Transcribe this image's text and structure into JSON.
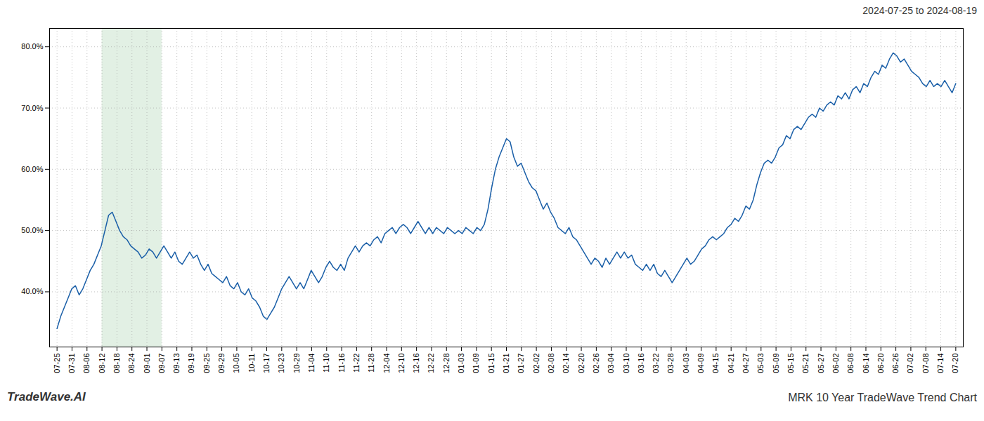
{
  "chart_data": {
    "type": "line",
    "title": "2024-07-25 to 2024-08-19",
    "annotations": [
      "TradeWave.AI",
      "MRK 10 Year TradeWave Trend Chart"
    ],
    "color": "#1a5fa8",
    "grid": true,
    "shaded_region": {
      "x": [
        3,
        7
      ],
      "color": "#d6ead8"
    },
    "xlim": [
      -0.5,
      60.5
    ],
    "xticks": [
      {
        "value": 0,
        "label": "07-25"
      },
      {
        "value": 1,
        "label": "07-31"
      },
      {
        "value": 2,
        "label": "08-06"
      },
      {
        "value": 3,
        "label": "08-12"
      },
      {
        "value": 4,
        "label": "08-18"
      },
      {
        "value": 5,
        "label": "08-24"
      },
      {
        "value": 6,
        "label": "09-01"
      },
      {
        "value": 7,
        "label": "09-07"
      },
      {
        "value": 8,
        "label": "09-13"
      },
      {
        "value": 9,
        "label": "09-19"
      },
      {
        "value": 10,
        "label": "09-25"
      },
      {
        "value": 11,
        "label": "09-29"
      },
      {
        "value": 12,
        "label": "10-05"
      },
      {
        "value": 13,
        "label": "10-11"
      },
      {
        "value": 14,
        "label": "10-17"
      },
      {
        "value": 15,
        "label": "10-23"
      },
      {
        "value": 16,
        "label": "10-29"
      },
      {
        "value": 17,
        "label": "11-04"
      },
      {
        "value": 18,
        "label": "11-10"
      },
      {
        "value": 19,
        "label": "11-16"
      },
      {
        "value": 20,
        "label": "11-22"
      },
      {
        "value": 21,
        "label": "11-28"
      },
      {
        "value": 22,
        "label": "12-04"
      },
      {
        "value": 23,
        "label": "12-10"
      },
      {
        "value": 24,
        "label": "12-16"
      },
      {
        "value": 25,
        "label": "12-22"
      },
      {
        "value": 26,
        "label": "12-28"
      },
      {
        "value": 27,
        "label": "01-03"
      },
      {
        "value": 28,
        "label": "01-09"
      },
      {
        "value": 29,
        "label": "01-15"
      },
      {
        "value": 30,
        "label": "01-21"
      },
      {
        "value": 31,
        "label": "01-27"
      },
      {
        "value": 32,
        "label": "02-02"
      },
      {
        "value": 33,
        "label": "02-08"
      },
      {
        "value": 34,
        "label": "02-14"
      },
      {
        "value": 35,
        "label": "02-20"
      },
      {
        "value": 36,
        "label": "02-26"
      },
      {
        "value": 37,
        "label": "03-04"
      },
      {
        "value": 38,
        "label": "03-10"
      },
      {
        "value": 39,
        "label": "03-16"
      },
      {
        "value": 40,
        "label": "03-22"
      },
      {
        "value": 41,
        "label": "03-28"
      },
      {
        "value": 42,
        "label": "04-03"
      },
      {
        "value": 43,
        "label": "04-09"
      },
      {
        "value": 44,
        "label": "04-15"
      },
      {
        "value": 45,
        "label": "04-21"
      },
      {
        "value": 46,
        "label": "04-27"
      },
      {
        "value": 47,
        "label": "05-03"
      },
      {
        "value": 48,
        "label": "05-09"
      },
      {
        "value": 49,
        "label": "05-15"
      },
      {
        "value": 50,
        "label": "05-21"
      },
      {
        "value": 51,
        "label": "05-27"
      },
      {
        "value": 52,
        "label": "06-02"
      },
      {
        "value": 53,
        "label": "06-08"
      },
      {
        "value": 54,
        "label": "06-14"
      },
      {
        "value": 55,
        "label": "06-20"
      },
      {
        "value": 56,
        "label": "06-26"
      },
      {
        "value": 57,
        "label": "07-02"
      },
      {
        "value": 58,
        "label": "07-08"
      },
      {
        "value": 59,
        "label": "07-14"
      },
      {
        "value": 60,
        "label": "07-20"
      }
    ],
    "ylim": [
      31.0,
      83.0
    ],
    "yticks": [
      {
        "value": 40.0,
        "label": "40.0%"
      },
      {
        "value": 50.0,
        "label": "50.0%"
      },
      {
        "value": 60.0,
        "label": "60.0%"
      },
      {
        "value": 70.0,
        "label": "70.0%"
      },
      {
        "value": 80.0,
        "label": "80.0%"
      }
    ],
    "x": [
      0,
      0.2459,
      0.4918,
      0.7377,
      0.9836,
      1.2295,
      1.4754,
      1.7213,
      1.9672,
      2.2131,
      2.459,
      2.7049,
      2.9508,
      3.1967,
      3.4426,
      3.6885,
      3.9344,
      4.1803,
      4.4262,
      4.6721,
      4.918,
      5.1639,
      5.4098,
      5.6557,
      5.9016,
      6.1475,
      6.3934,
      6.6393,
      6.8852,
      7.1311,
      7.377,
      7.623,
      7.8689,
      8.1148,
      8.3607,
      8.6066,
      8.8525,
      9.0984,
      9.3443,
      9.5902,
      9.8361,
      10.082,
      10.3279,
      10.5738,
      10.8197,
      11.0656,
      11.3115,
      11.5574,
      11.8033,
      12.0492,
      12.2951,
      12.541,
      12.7869,
      13.0328,
      13.2787,
      13.5246,
      13.7705,
      14.0164,
      14.2623,
      14.5082,
      14.7541,
      15,
      15.2459,
      15.4918,
      15.7377,
      15.9836,
      16.2295,
      16.4754,
      16.7213,
      16.9672,
      17.2131,
      17.459,
      17.7049,
      17.9508,
      18.1967,
      18.4426,
      18.6885,
      18.9344,
      19.1803,
      19.4262,
      19.6721,
      19.918,
      20.1639,
      20.4098,
      20.6557,
      20.9016,
      21.1475,
      21.3934,
      21.6393,
      21.8852,
      22.1311,
      22.377,
      22.623,
      22.8689,
      23.1148,
      23.3607,
      23.6066,
      23.8525,
      24.0984,
      24.3443,
      24.5902,
      24.8361,
      25.082,
      25.3279,
      25.5738,
      25.8197,
      26.0656,
      26.3115,
      26.5574,
      26.8033,
      27.0492,
      27.2951,
      27.541,
      27.7869,
      28.0328,
      28.2787,
      28.5246,
      28.7705,
      29.0164,
      29.2623,
      29.5082,
      29.7541,
      30,
      30.2459,
      30.4918,
      30.7377,
      30.9836,
      31.2295,
      31.4754,
      31.7213,
      31.9672,
      32.2131,
      32.459,
      32.7049,
      32.9508,
      33.1967,
      33.4426,
      33.6885,
      33.9344,
      34.1803,
      34.4262,
      34.6721,
      34.918,
      35.1639,
      35.4098,
      35.6557,
      35.9016,
      36.1475,
      36.3934,
      36.6393,
      36.8852,
      37.1311,
      37.377,
      37.623,
      37.8689,
      38.1148,
      38.3607,
      38.6066,
      38.8525,
      39.0984,
      39.3443,
      39.5902,
      39.8361,
      40.082,
      40.3279,
      40.5738,
      40.8197,
      41.0656,
      41.3115,
      41.5574,
      41.8033,
      42.0492,
      42.2951,
      42.541,
      42.7869,
      43.0328,
      43.2787,
      43.5246,
      43.7705,
      44.0164,
      44.2623,
      44.5082,
      44.7541,
      45,
      45.2459,
      45.4918,
      45.7377,
      45.9836,
      46.2295,
      46.4754,
      46.7213,
      46.9672,
      47.2131,
      47.459,
      47.7049,
      47.9508,
      48.1967,
      48.4426,
      48.6885,
      48.9344,
      49.1803,
      49.4262,
      49.6721,
      49.918,
      50.1639,
      50.4098,
      50.6557,
      50.9016,
      51.1475,
      51.3934,
      51.6393,
      51.8852,
      52.1311,
      52.377,
      52.623,
      52.8689,
      53.1148,
      53.3607,
      53.6066,
      53.8525,
      54.0984,
      54.3443,
      54.5902,
      54.8361,
      55.082,
      55.3279,
      55.5738,
      55.8197,
      56.0656,
      56.3115,
      56.5574,
      56.8033,
      57.0492,
      57.2951,
      57.541,
      57.7869,
      58.0328,
      58.2787,
      58.5246,
      58.7705,
      59.0164,
      59.2623,
      59.5082,
      59.7541,
      60
    ],
    "values": [
      34.0,
      36.0,
      37.5,
      39.0,
      40.5,
      41.0,
      39.5,
      40.5,
      42.0,
      43.5,
      44.5,
      46.0,
      47.5,
      50.0,
      52.5,
      53.0,
      51.5,
      50.0,
      49.0,
      48.5,
      47.5,
      47.0,
      46.5,
      45.5,
      46.0,
      47.0,
      46.5,
      45.5,
      46.5,
      47.5,
      46.5,
      45.5,
      46.5,
      45.0,
      44.5,
      45.5,
      46.5,
      45.5,
      46.0,
      44.5,
      43.5,
      44.5,
      43.0,
      42.5,
      42.0,
      41.5,
      42.5,
      41.0,
      40.5,
      41.5,
      40.0,
      39.5,
      40.5,
      39.0,
      38.5,
      37.5,
      36.0,
      35.5,
      36.5,
      37.5,
      39.0,
      40.5,
      41.5,
      42.5,
      41.5,
      40.5,
      41.5,
      40.5,
      42.0,
      43.5,
      42.5,
      41.5,
      42.5,
      44.0,
      45.0,
      44.0,
      43.5,
      44.5,
      43.5,
      45.5,
      46.5,
      47.5,
      46.5,
      47.5,
      48.0,
      47.5,
      48.5,
      49.0,
      48.0,
      49.5,
      50.0,
      50.5,
      49.5,
      50.5,
      51.0,
      50.5,
      49.5,
      50.5,
      51.5,
      50.5,
      49.5,
      50.5,
      49.5,
      50.5,
      50.0,
      49.5,
      50.5,
      50.0,
      49.5,
      50.0,
      49.5,
      50.5,
      50.0,
      49.5,
      50.5,
      50.0,
      51.0,
      53.5,
      57.0,
      60.0,
      62.0,
      63.5,
      65.0,
      64.5,
      62.0,
      60.5,
      61.0,
      59.5,
      58.0,
      57.0,
      56.5,
      55.0,
      53.5,
      54.5,
      53.0,
      52.0,
      50.5,
      50.0,
      49.5,
      50.5,
      49.0,
      48.5,
      47.5,
      46.5,
      45.5,
      44.5,
      45.5,
      45.0,
      44.0,
      45.5,
      44.5,
      45.5,
      46.5,
      45.5,
      46.5,
      45.5,
      46.0,
      44.5,
      44.0,
      43.5,
      44.5,
      43.5,
      44.5,
      43.0,
      42.5,
      43.5,
      42.5,
      41.5,
      42.5,
      43.5,
      44.5,
      45.5,
      44.5,
      45.0,
      46.0,
      47.0,
      47.5,
      48.5,
      49.0,
      48.5,
      49.0,
      49.5,
      50.5,
      51.0,
      52.0,
      51.5,
      52.5,
      54.0,
      53.5,
      55.0,
      57.5,
      59.5,
      61.0,
      61.5,
      61.0,
      62.0,
      63.5,
      64.0,
      65.5,
      65.0,
      66.5,
      67.0,
      66.5,
      67.5,
      68.5,
      69.0,
      68.5,
      70.0,
      69.5,
      70.5,
      71.0,
      70.5,
      72.0,
      71.5,
      72.5,
      71.5,
      73.0,
      73.5,
      72.5,
      74.0,
      73.5,
      75.0,
      76.0,
      75.5,
      77.0,
      76.5,
      78.0,
      79.0,
      78.5,
      77.5,
      78.0,
      77.0,
      76.0,
      75.5,
      75.0,
      74.0,
      73.5,
      74.5,
      73.5,
      74.0,
      73.5,
      74.5,
      73.5,
      72.5,
      74.0
    ]
  }
}
